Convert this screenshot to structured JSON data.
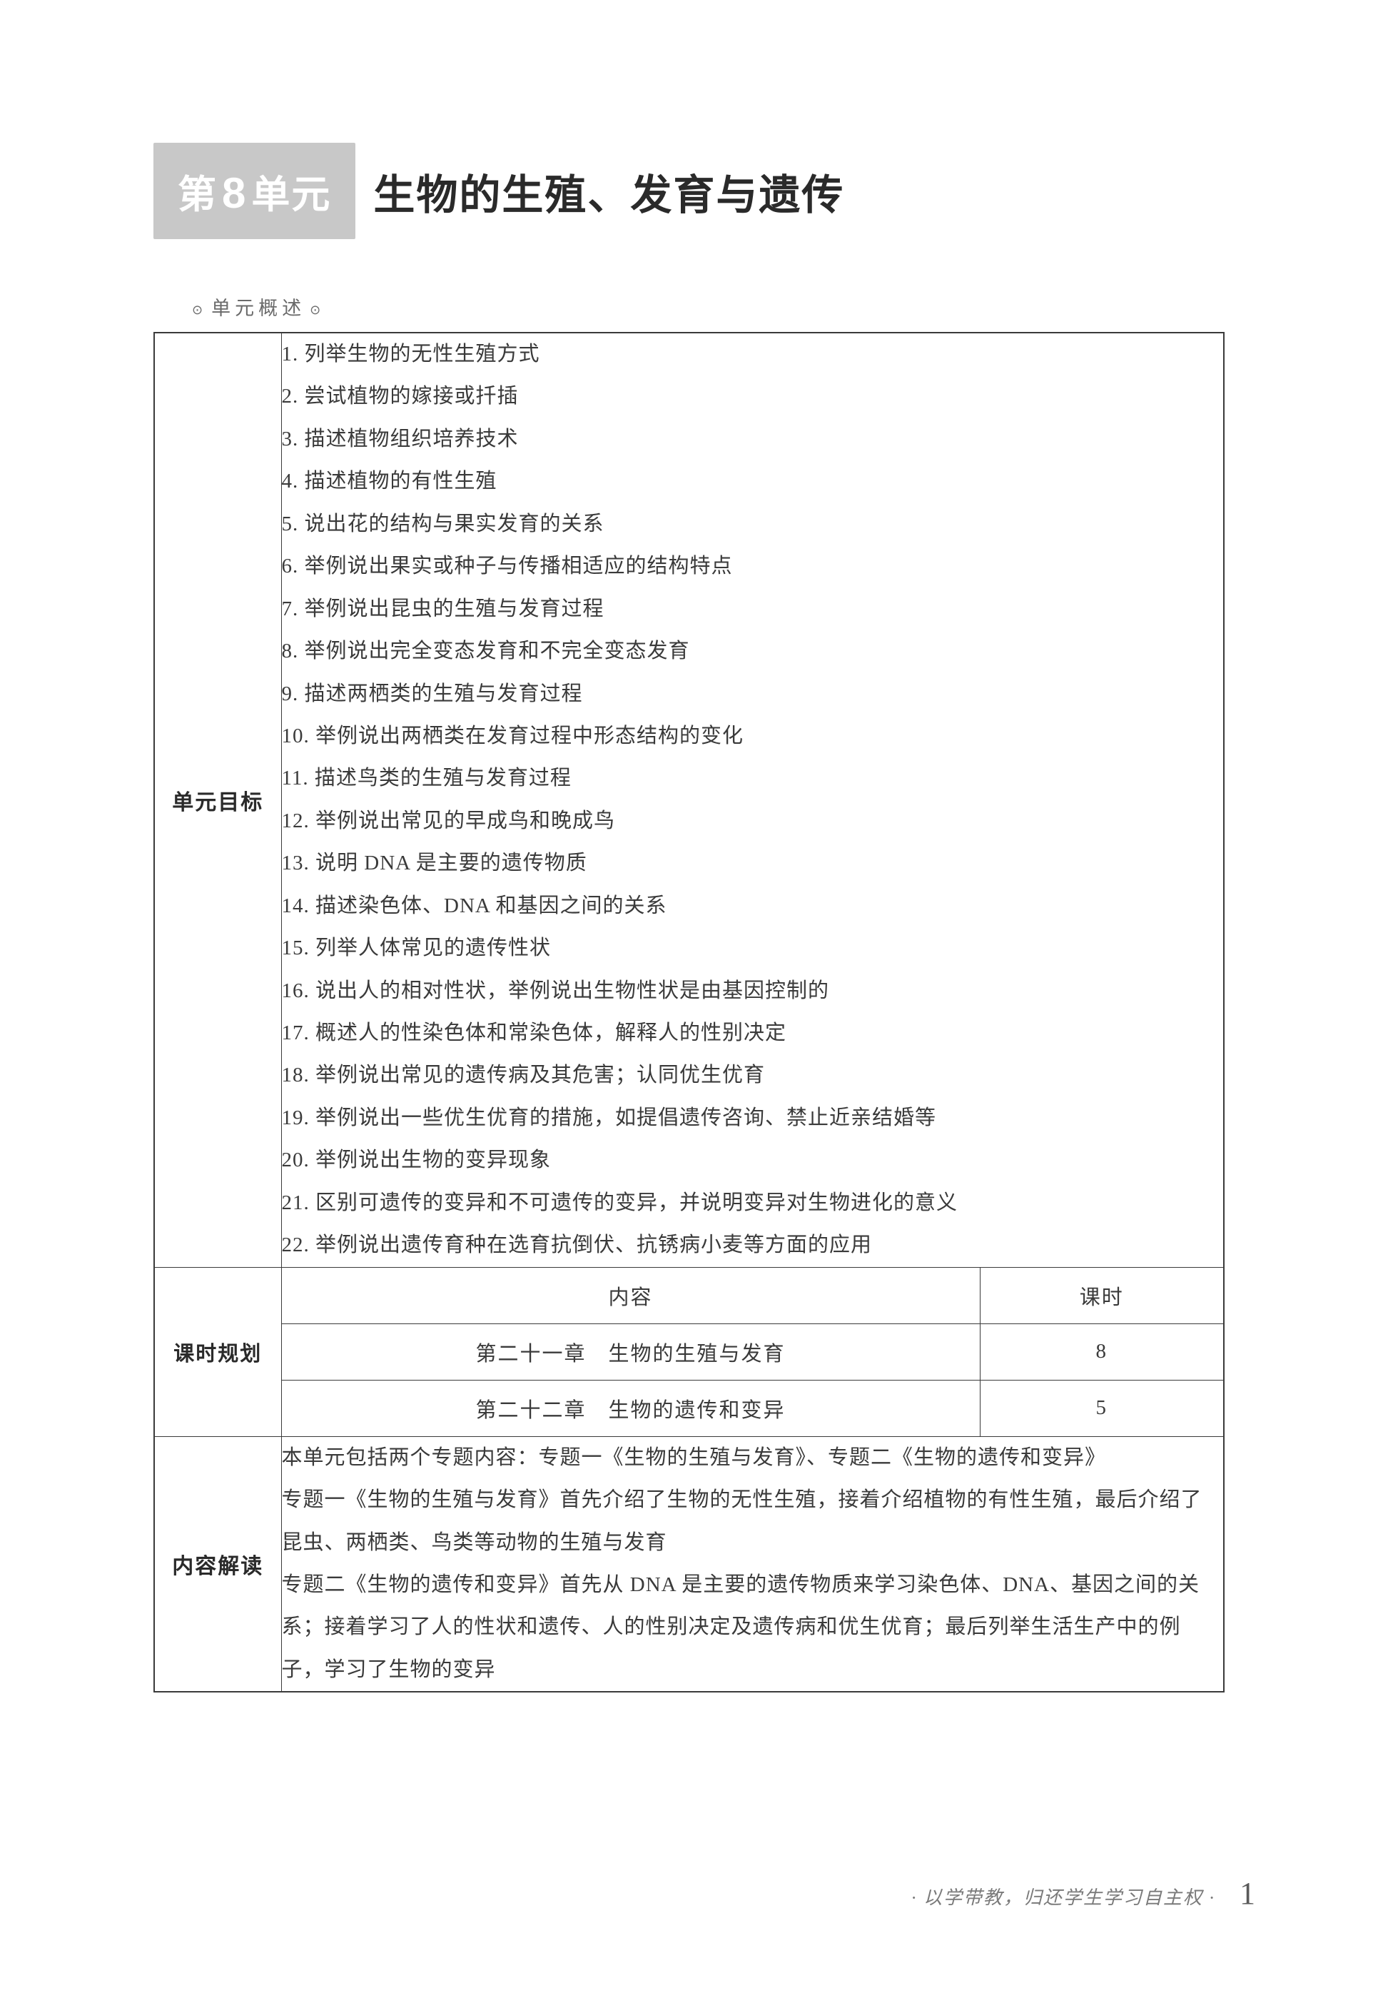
{
  "header": {
    "badge_prefix": "第",
    "badge_number": "8",
    "badge_suffix": "单元",
    "title": "生物的生殖、发育与遗传"
  },
  "overview_label": "单元概述",
  "sections": {
    "goals": {
      "label": "单元目标",
      "items": [
        "1. 列举生物的无性生殖方式",
        "2. 尝试植物的嫁接或扦插",
        "3. 描述植物组织培养技术",
        "4. 描述植物的有性生殖",
        "5. 说出花的结构与果实发育的关系",
        "6. 举例说出果实或种子与传播相适应的结构特点",
        "7. 举例说出昆虫的生殖与发育过程",
        "8. 举例说出完全变态发育和不完全变态发育",
        "9. 描述两栖类的生殖与发育过程",
        "10. 举例说出两栖类在发育过程中形态结构的变化",
        "11. 描述鸟类的生殖与发育过程",
        "12. 举例说出常见的早成鸟和晚成鸟",
        "13. 说明 DNA 是主要的遗传物质",
        "14. 描述染色体、DNA 和基因之间的关系",
        "15. 列举人体常见的遗传性状",
        "16. 说出人的相对性状，举例说出生物性状是由基因控制的",
        "17. 概述人的性染色体和常染色体，解释人的性别决定",
        "18. 举例说出常见的遗传病及其危害；认同优生优育",
        "19. 举例说出一些优生优育的措施，如提倡遗传咨询、禁止近亲结婚等",
        "20. 举例说出生物的变异现象",
        "21. 区别可遗传的变异和不可遗传的变异，并说明变异对生物进化的意义",
        "22. 举例说出遗传育种在选育抗倒伏、抗锈病小麦等方面的应用"
      ]
    },
    "schedule": {
      "label": "课时规划",
      "header_content": "内容",
      "header_hours": "课时",
      "rows": [
        {
          "content": "第二十一章　生物的生殖与发育",
          "hours": "8"
        },
        {
          "content": "第二十二章　生物的遗传和变异",
          "hours": "5"
        }
      ]
    },
    "interpretation": {
      "label": "内容解读",
      "paragraphs": [
        "本单元包括两个专题内容：专题一《生物的生殖与发育》、专题二《生物的遗传和变异》",
        "专题一《生物的生殖与发育》首先介绍了生物的无性生殖，接着介绍植物的有性生殖，最后介绍了昆虫、两栖类、鸟类等动物的生殖与发育",
        "专题二《生物的遗传和变异》首先从 DNA 是主要的遗传物质来学习染色体、DNA、基因之间的关系；接着学习了人的性状和遗传、人的性别决定及遗传病和优生优育；最后列举生活生产中的例子，学习了生物的变异"
      ]
    }
  },
  "footer": {
    "motto": "· 以学带教，归还学生学习自主权 ·",
    "page_number": "1"
  },
  "colors": {
    "badge_bg": "#c8c8c8",
    "badge_fg": "#ffffff",
    "text": "#3a3a3a",
    "border": "#3a3a3a",
    "footer_text": "#7a7a7a"
  }
}
